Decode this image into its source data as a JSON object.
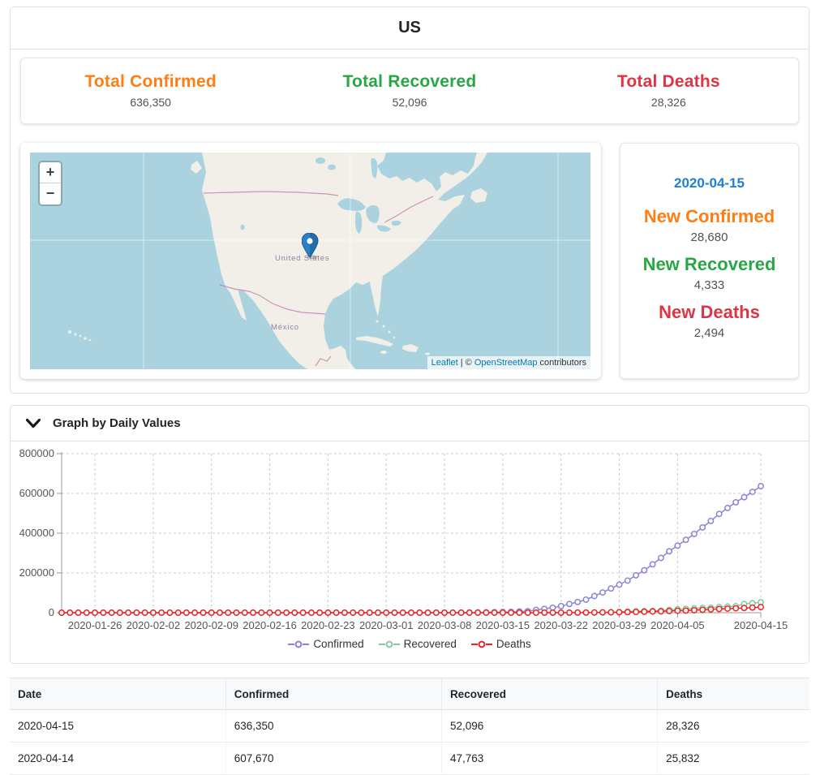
{
  "header": {
    "title": "US"
  },
  "totals": {
    "confirmed": {
      "label": "Total Confirmed",
      "value": "636,350",
      "color": "#fd7e14"
    },
    "recovered": {
      "label": "Total Recovered",
      "value": "52,096",
      "color": "#28a745"
    },
    "deaths": {
      "label": "Total Deaths",
      "value": "28,326",
      "color": "#dc3545"
    }
  },
  "daily": {
    "date": "2020-04-15",
    "date_color": "#1e7fd6",
    "new_confirmed": {
      "label": "New Confirmed",
      "value": "28,680",
      "color": "#fd7e14"
    },
    "new_recovered": {
      "label": "New Recovered",
      "value": "4,333",
      "color": "#28a745"
    },
    "new_deaths": {
      "label": "New Deaths",
      "value": "2,494",
      "color": "#dc3545"
    }
  },
  "map": {
    "zoom_in_label": "+",
    "zoom_out_label": "−",
    "labels": {
      "united_states": "United States",
      "mexico": "México"
    },
    "attribution": {
      "leaflet": "Leaflet",
      "separator": " | © ",
      "osm": "OpenStreetMap",
      "suffix": " contributors"
    },
    "colors": {
      "water": "#aad3df",
      "land": "#f2efe9",
      "border": "#c583b1",
      "label": "#9081a0",
      "marker": "#2a81cb"
    }
  },
  "graph_section": {
    "title": "Graph by Daily Values"
  },
  "chart_data": {
    "type": "line",
    "title": "",
    "xlabel": "",
    "ylabel": "",
    "ylim": [
      0,
      800000
    ],
    "yticks": [
      0,
      200000,
      400000,
      600000,
      800000
    ],
    "grid": "dashed",
    "legend_position": "bottom",
    "xtick_labels": [
      "2020-01-26",
      "2020-02-02",
      "2020-02-09",
      "2020-02-16",
      "2020-02-23",
      "2020-03-01",
      "2020-03-08",
      "2020-03-15",
      "2020-03-22",
      "2020-03-29",
      "2020-04-05",
      "2020-04-15"
    ],
    "x": [
      "2020-01-22",
      "2020-01-23",
      "2020-01-24",
      "2020-01-25",
      "2020-01-26",
      "2020-01-27",
      "2020-01-28",
      "2020-01-29",
      "2020-01-30",
      "2020-01-31",
      "2020-02-01",
      "2020-02-02",
      "2020-02-03",
      "2020-02-04",
      "2020-02-05",
      "2020-02-06",
      "2020-02-07",
      "2020-02-08",
      "2020-02-09",
      "2020-02-10",
      "2020-02-11",
      "2020-02-12",
      "2020-02-13",
      "2020-02-14",
      "2020-02-15",
      "2020-02-16",
      "2020-02-17",
      "2020-02-18",
      "2020-02-19",
      "2020-02-20",
      "2020-02-21",
      "2020-02-22",
      "2020-02-23",
      "2020-02-24",
      "2020-02-25",
      "2020-02-26",
      "2020-02-27",
      "2020-02-28",
      "2020-02-29",
      "2020-03-01",
      "2020-03-02",
      "2020-03-03",
      "2020-03-04",
      "2020-03-05",
      "2020-03-06",
      "2020-03-07",
      "2020-03-08",
      "2020-03-09",
      "2020-03-10",
      "2020-03-11",
      "2020-03-12",
      "2020-03-13",
      "2020-03-14",
      "2020-03-15",
      "2020-03-16",
      "2020-03-17",
      "2020-03-18",
      "2020-03-19",
      "2020-03-20",
      "2020-03-21",
      "2020-03-22",
      "2020-03-23",
      "2020-03-24",
      "2020-03-25",
      "2020-03-26",
      "2020-03-27",
      "2020-03-28",
      "2020-03-29",
      "2020-03-30",
      "2020-03-31",
      "2020-04-01",
      "2020-04-02",
      "2020-04-03",
      "2020-04-04",
      "2020-04-05",
      "2020-04-06",
      "2020-04-07",
      "2020-04-08",
      "2020-04-09",
      "2020-04-10",
      "2020-04-11",
      "2020-04-12",
      "2020-04-13",
      "2020-04-14",
      "2020-04-15"
    ],
    "series": [
      {
        "name": "Confirmed",
        "color": "#8884d8",
        "values": [
          1,
          1,
          2,
          2,
          5,
          5,
          5,
          5,
          5,
          7,
          8,
          8,
          11,
          11,
          11,
          11,
          11,
          11,
          11,
          11,
          12,
          12,
          13,
          13,
          13,
          13,
          13,
          13,
          13,
          13,
          15,
          15,
          15,
          51,
          51,
          57,
          58,
          60,
          68,
          74,
          98,
          118,
          149,
          217,
          262,
          402,
          518,
          583,
          959,
          1281,
          1663,
          2179,
          2727,
          3499,
          4632,
          6421,
          7783,
          13677,
          19100,
          25489,
          33276,
          43847,
          53740,
          65778,
          83836,
          101657,
          121478,
          140886,
          161807,
          188172,
          213372,
          243453,
          275586,
          308850,
          337072,
          366667,
          396223,
          429052,
          461437,
          496535,
          526396,
          555313,
          580619,
          607670,
          636350
        ]
      },
      {
        "name": "Recovered",
        "color": "#82ca9d",
        "values": [
          0,
          0,
          0,
          0,
          0,
          0,
          0,
          0,
          0,
          0,
          0,
          0,
          0,
          0,
          0,
          0,
          0,
          0,
          3,
          3,
          3,
          3,
          3,
          3,
          3,
          3,
          3,
          3,
          3,
          3,
          5,
          5,
          5,
          5,
          6,
          6,
          6,
          6,
          7,
          7,
          7,
          7,
          7,
          7,
          7,
          7,
          7,
          7,
          8,
          8,
          12,
          12,
          12,
          12,
          17,
          17,
          105,
          121,
          147,
          176,
          178,
          178,
          348,
          361,
          681,
          869,
          1072,
          2665,
          5644,
          7024,
          8474,
          9001,
          9707,
          14652,
          17448,
          19581,
          21763,
          23559,
          25410,
          28790,
          31270,
          32988,
          43482,
          47763,
          52096
        ]
      },
      {
        "name": "Deaths",
        "color": "#f02222",
        "values": [
          0,
          0,
          0,
          0,
          0,
          0,
          0,
          0,
          0,
          0,
          0,
          0,
          0,
          0,
          0,
          0,
          0,
          0,
          0,
          0,
          0,
          0,
          0,
          0,
          0,
          0,
          0,
          0,
          0,
          0,
          0,
          0,
          0,
          0,
          0,
          0,
          0,
          0,
          1,
          1,
          6,
          7,
          11,
          12,
          14,
          17,
          21,
          22,
          28,
          36,
          40,
          47,
          54,
          63,
          85,
          108,
          118,
          200,
          244,
          307,
          417,
          557,
          706,
          942,
          1209,
          1581,
          2026,
          2467,
          2978,
          3873,
          4757,
          5926,
          7087,
          8407,
          9619,
          10783,
          12798,
          14704,
          16544,
          18595,
          20471,
          22020,
          23529,
          25832,
          28326
        ]
      }
    ]
  },
  "table": {
    "columns": [
      "Date",
      "Confirmed",
      "Recovered",
      "Deaths"
    ],
    "rows": [
      [
        "2020-04-15",
        "636,350",
        "52,096",
        "28,326"
      ],
      [
        "2020-04-14",
        "607,670",
        "47,763",
        "25,832"
      ]
    ]
  }
}
